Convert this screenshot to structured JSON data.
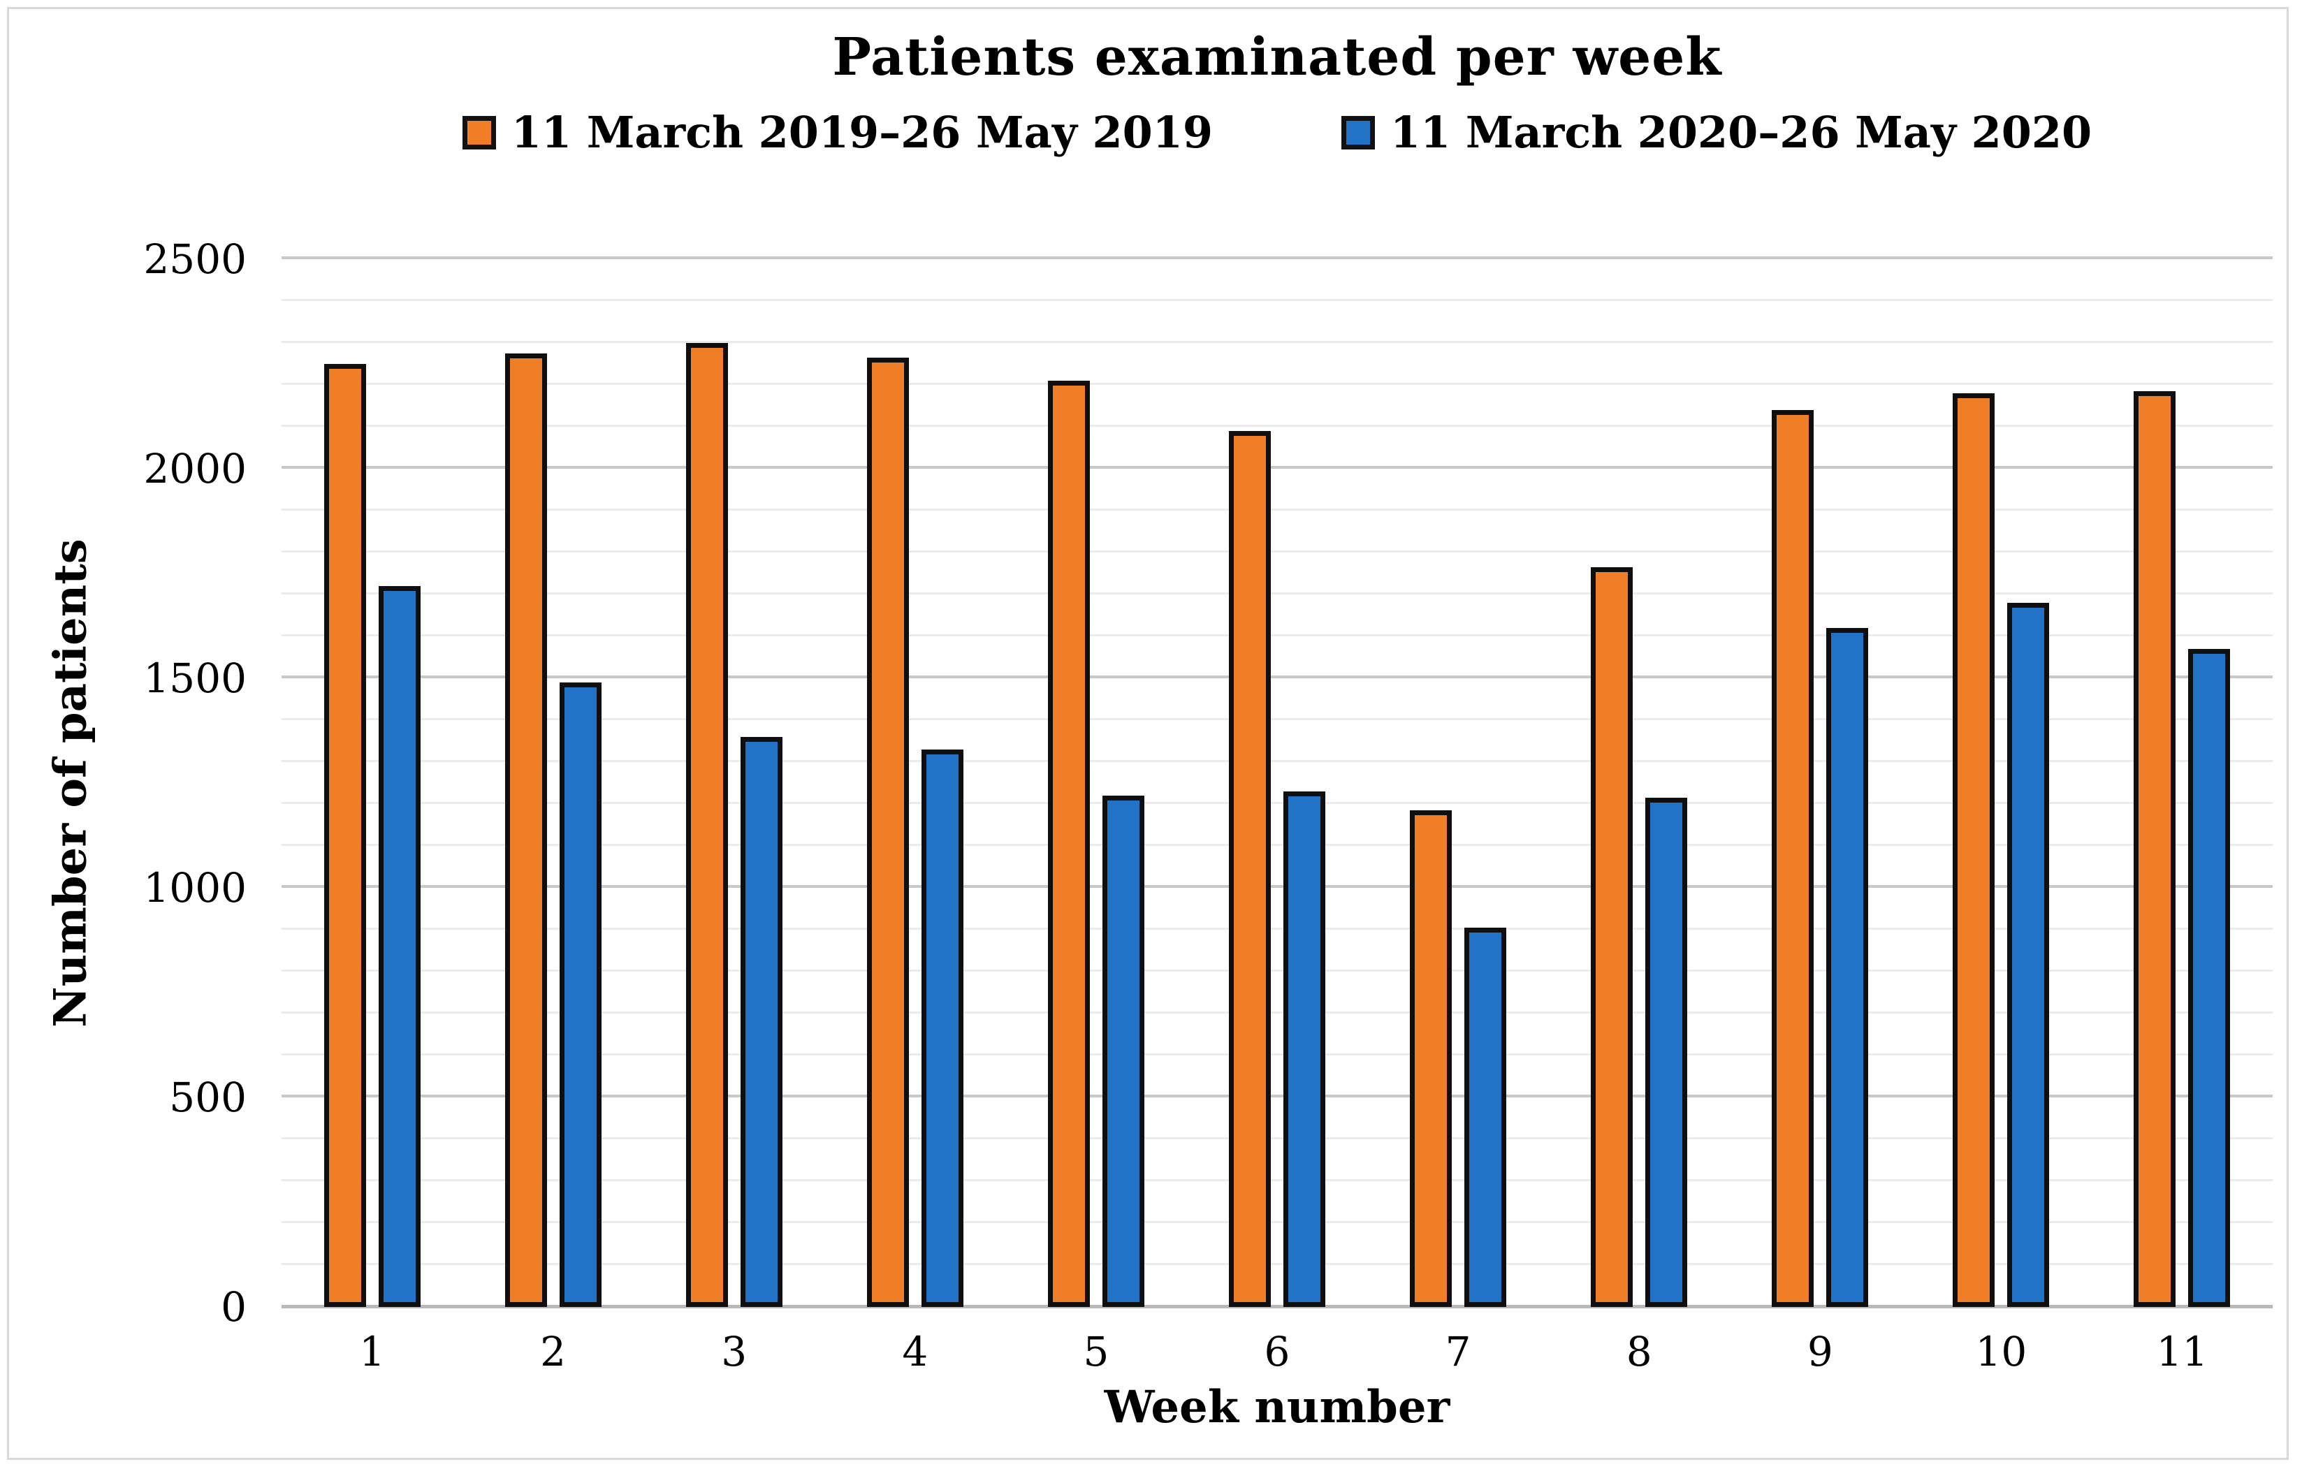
{
  "title": "Patients examinated per week",
  "legend": [
    {
      "label": "11 March 2019–26 May 2019",
      "color": "#F07E26"
    },
    {
      "label": "11 March 2020–26 May 2020",
      "color": "#2173C8"
    }
  ],
  "y_axis": {
    "title": "Number of patients",
    "ticks": [
      0,
      500,
      1000,
      1500,
      2000,
      2500
    ],
    "max": 2500,
    "minor_gridline_step": 100,
    "major_gridline_step": 500
  },
  "x_axis": {
    "title": "Week number",
    "ticks": [
      "1",
      "2",
      "3",
      "4",
      "5",
      "6",
      "7",
      "8",
      "9",
      "10",
      "11"
    ]
  },
  "chart_data": {
    "type": "bar",
    "categories": [
      1,
      2,
      3,
      4,
      5,
      6,
      7,
      8,
      9,
      10,
      11
    ],
    "series": [
      {
        "name": "11 March 2019–26 May 2019",
        "color": "#F07E26",
        "values": [
          2250,
          2275,
          2300,
          2265,
          2210,
          2090,
          1185,
          1765,
          2140,
          2180,
          2185
        ]
      },
      {
        "name": "11 March 2020–26 May 2020",
        "color": "#2173C8",
        "values": [
          1720,
          1490,
          1360,
          1330,
          1220,
          1230,
          905,
          1215,
          1620,
          1680,
          1570
        ]
      }
    ],
    "title": "Patients examinated per week",
    "xlabel": "Week number",
    "ylabel": "Number of patients",
    "ylim": [
      0,
      2500
    ],
    "grid": "horizontal, minor every 100 (light), major every 500 (darker)",
    "legend_position": "top",
    "bar_outline_color": "#0f0f0f"
  },
  "colors": {
    "series_2019": "#F07E26",
    "series_2020": "#2173C8",
    "bar_border": "#0f0f0f",
    "minor_grid": "#ececec",
    "major_grid": "#c8c8c8",
    "baseline": "#b8b8b8",
    "figure_border": "#d9d9d9",
    "text": "#000000"
  }
}
